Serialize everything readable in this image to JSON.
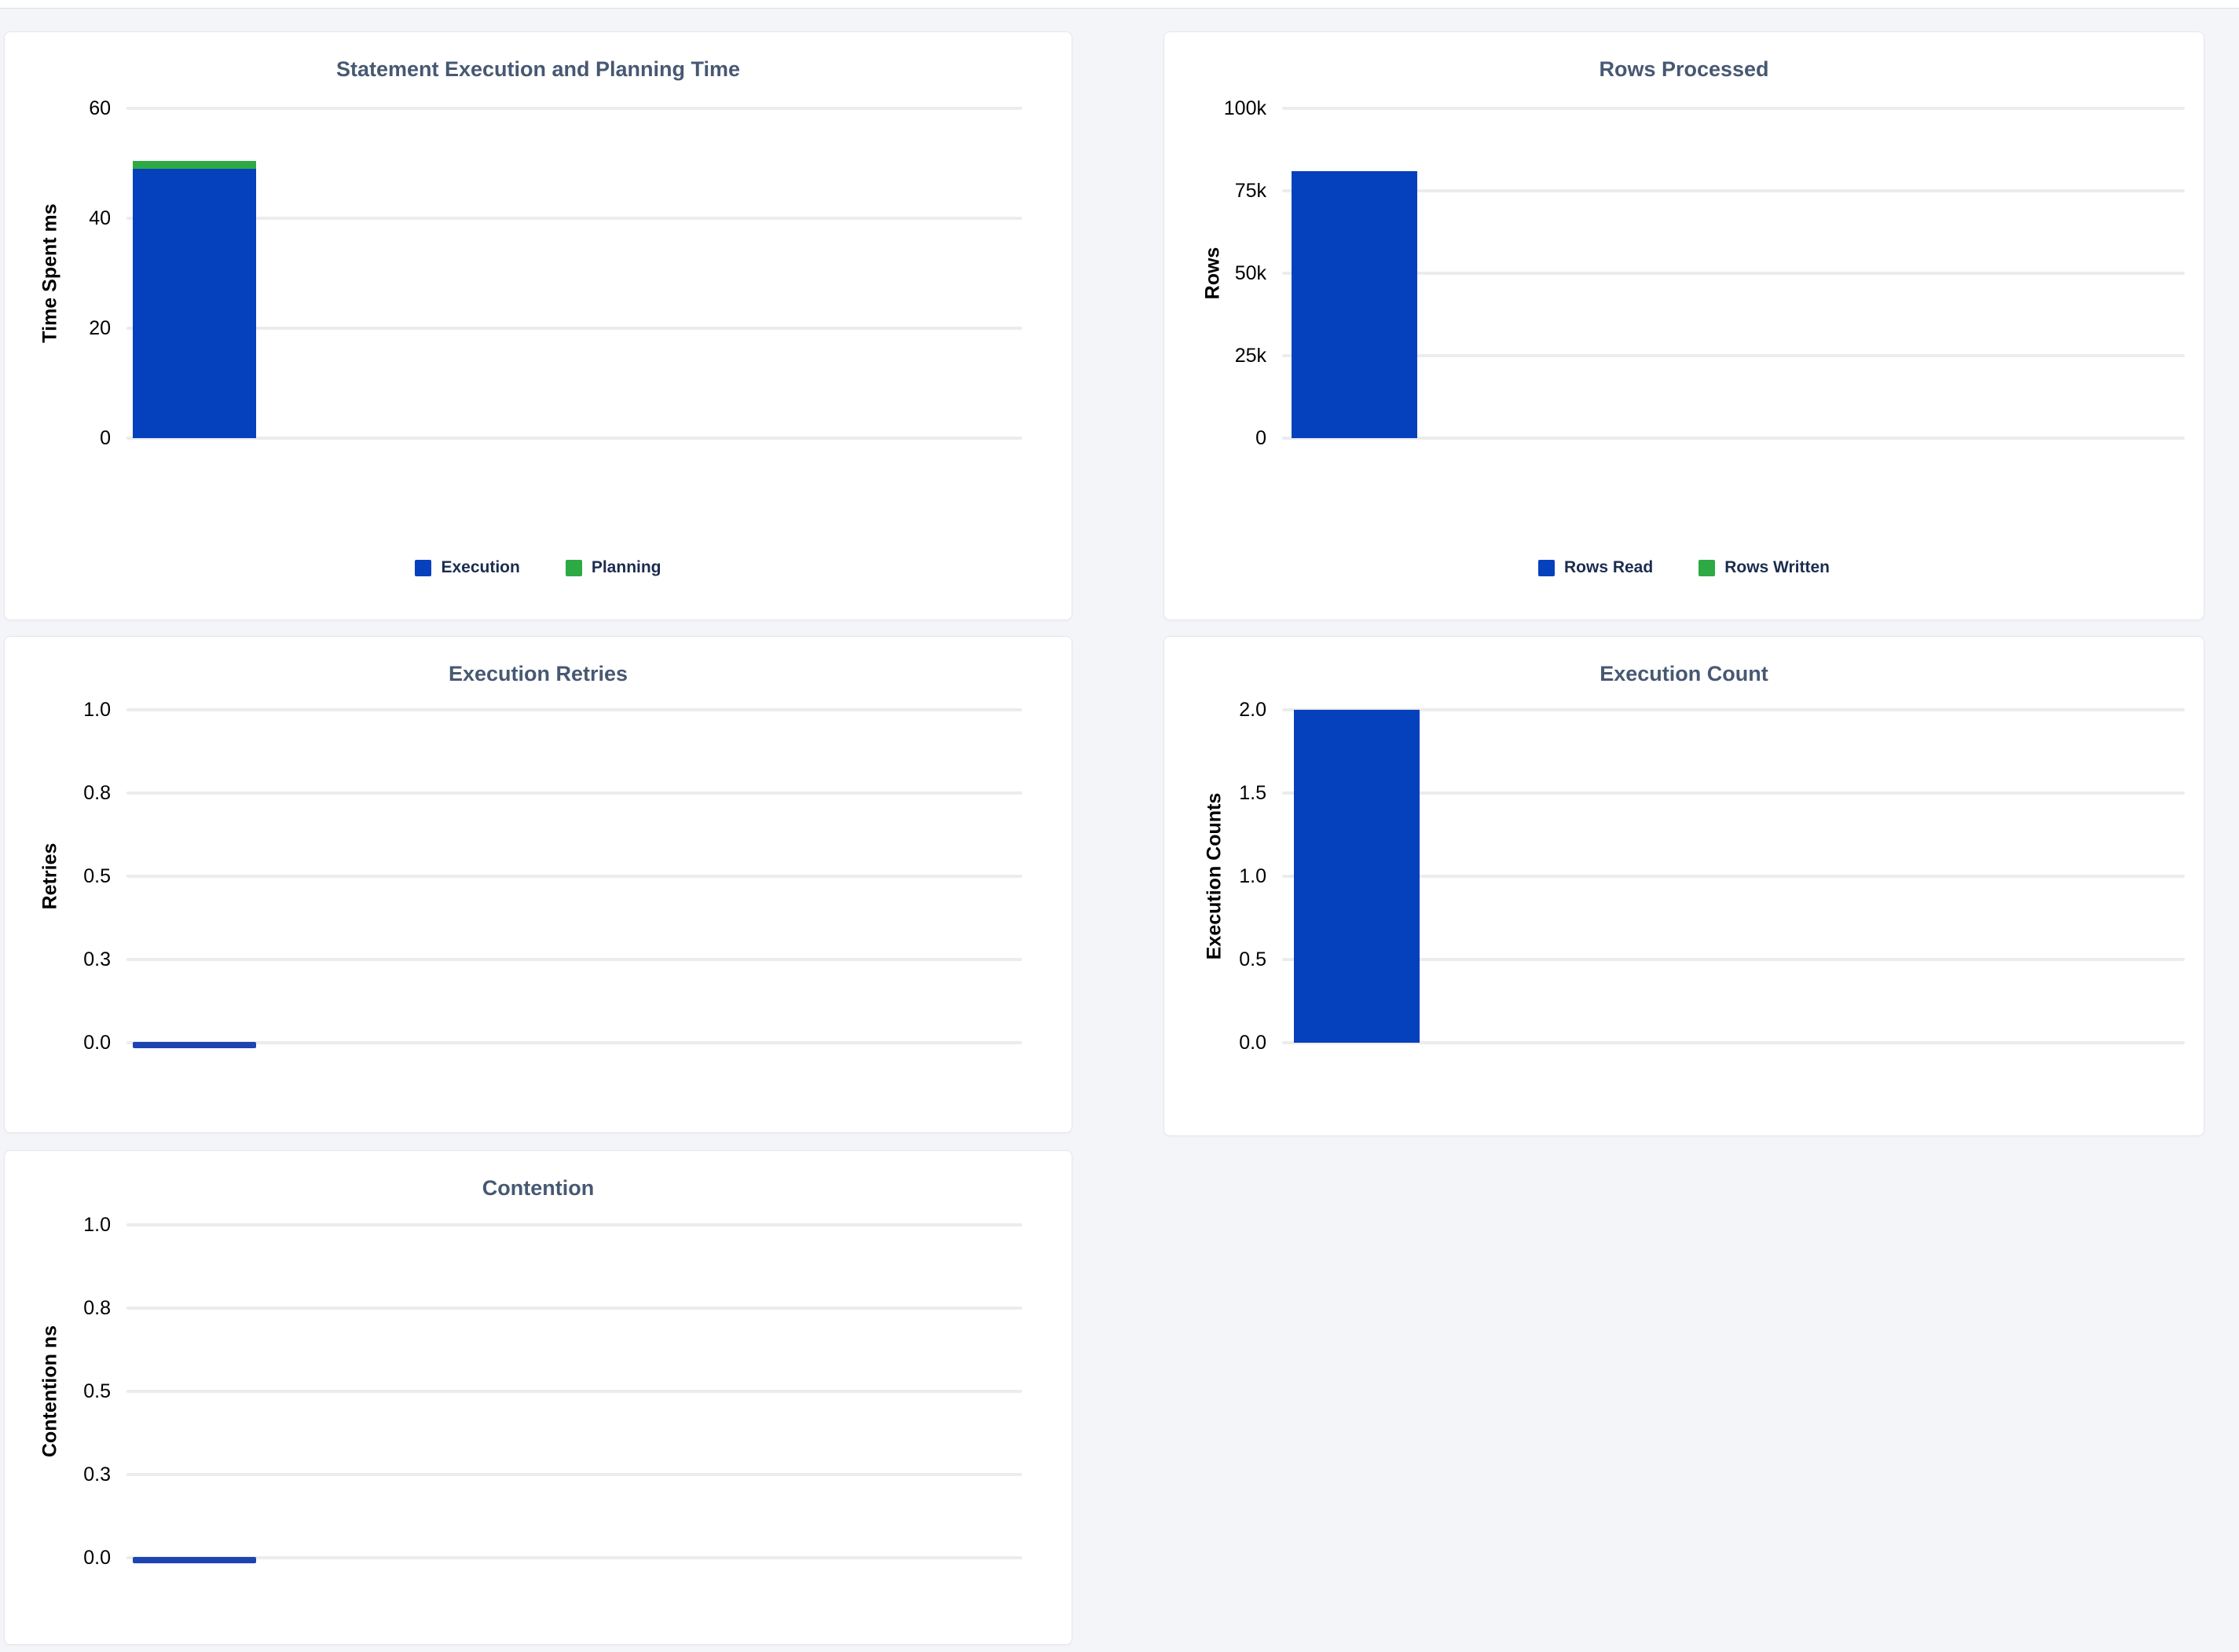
{
  "page": {
    "kind": "statement-details-charts-dashboard"
  },
  "palette": {
    "pageBg": "#f4f5f9",
    "cardBg": "#ffffff",
    "cardBorder": "#e6e7ec",
    "topbarBorder": "#dcdde3",
    "titleColor": "#475872",
    "tickColor": "#000000",
    "gridColor": "#ececec",
    "legendText": "#1c2c50",
    "barBlue": "#0540bd",
    "barGreen": "#2daa43",
    "zeroLineBlue": "#1c45b2"
  },
  "chart_data": [
    {
      "type": "bar",
      "title": "Statement Execution and Planning Time",
      "xlabel": "",
      "ylabel": "Time Spent ms",
      "ymin": 0,
      "ymax": 60,
      "yticks": [
        "60",
        "40",
        "20",
        "0"
      ],
      "grid": true,
      "stacked": true,
      "series": [
        {
          "name": "Execution",
          "value": 49,
          "color": "#0540bd"
        },
        {
          "name": "Planning",
          "value": 1.5,
          "color": "#2daa43"
        }
      ],
      "legend": {
        "position": "bottom-center",
        "items": [
          {
            "label": "Execution",
            "color": "#0540bd"
          },
          {
            "label": "Planning",
            "color": "#2daa43"
          }
        ]
      }
    },
    {
      "type": "bar",
      "title": "Rows Processed",
      "xlabel": "",
      "ylabel": "Rows",
      "ymin": 0,
      "ymax": 100000,
      "yticks": [
        "100k",
        "75k",
        "50k",
        "25k",
        "0"
      ],
      "grid": true,
      "stacked": true,
      "series": [
        {
          "name": "Rows Read",
          "value": 81000,
          "color": "#0540bd"
        },
        {
          "name": "Rows Written",
          "value": 0,
          "color": "#2daa43"
        }
      ],
      "legend": {
        "position": "bottom-center",
        "items": [
          {
            "label": "Rows Read",
            "color": "#0540bd"
          },
          {
            "label": "Rows Written",
            "color": "#2daa43"
          }
        ]
      }
    },
    {
      "type": "bar",
      "title": "Execution Retries",
      "xlabel": "",
      "ylabel": "Retries",
      "ymin": 0,
      "ymax": 1,
      "yticks": [
        "1.0",
        "0.8",
        "0.5",
        "0.3",
        "0.0"
      ],
      "grid": true,
      "stacked": false,
      "series": [
        {
          "name": "Retries",
          "value": 0,
          "color": "#1c45b2"
        }
      ]
    },
    {
      "type": "bar",
      "title": "Execution Count",
      "xlabel": "",
      "ylabel": "Execution Counts",
      "ymin": 0,
      "ymax": 2,
      "yticks": [
        "2.0",
        "1.5",
        "1.0",
        "0.5",
        "0.0"
      ],
      "grid": true,
      "stacked": false,
      "series": [
        {
          "name": "Execution Count",
          "value": 2,
          "color": "#0540bd"
        }
      ]
    },
    {
      "type": "bar",
      "title": "Contention",
      "xlabel": "",
      "ylabel": "Contention ns",
      "ymin": 0,
      "ymax": 1,
      "yticks": [
        "1.0",
        "0.8",
        "0.5",
        "0.3",
        "0.0"
      ],
      "grid": true,
      "stacked": false,
      "series": [
        {
          "name": "Contention",
          "value": 0,
          "color": "#1c45b2"
        }
      ]
    }
  ]
}
